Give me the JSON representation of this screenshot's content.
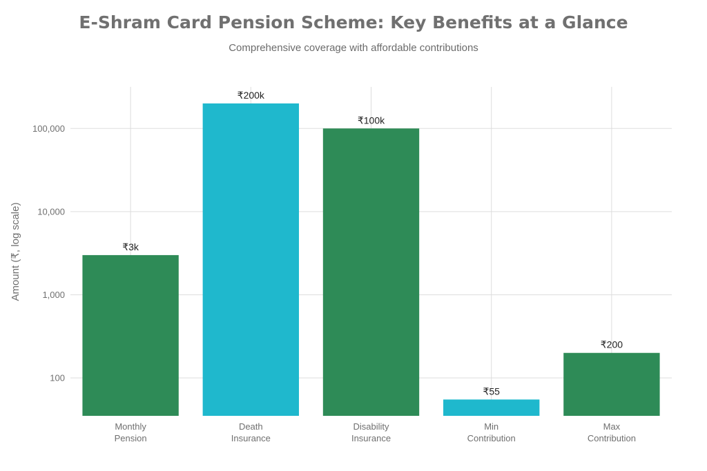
{
  "chart_data": {
    "type": "bar",
    "title": "E-Shram Card Pension Scheme: Key Benefits at a Glance",
    "subtitle": "Comprehensive coverage with affordable contributions",
    "xlabel": "",
    "ylabel": "Amount (₹, log scale)",
    "y_scale": "log",
    "ylim": [
      35,
      200000
    ],
    "y_ticks": [
      100,
      1000,
      10000,
      100000
    ],
    "y_tick_labels": [
      "100",
      "1,000",
      "10,000",
      "100,000"
    ],
    "grid": true,
    "categories": [
      [
        "Monthly",
        "Pension"
      ],
      [
        "Death",
        "Insurance"
      ],
      [
        "Disability",
        "Insurance"
      ],
      [
        "Min",
        "Contribution"
      ],
      [
        "Max",
        "Contribution"
      ]
    ],
    "values": [
      3000,
      200000,
      100000,
      55,
      200
    ],
    "data_labels": [
      "₹3k",
      "₹200k",
      "₹100k",
      "₹55",
      "₹200"
    ],
    "colors": [
      "#2e8b57",
      "#1fb8cd",
      "#2e8b57",
      "#1fb8cd",
      "#2e8b57"
    ]
  }
}
